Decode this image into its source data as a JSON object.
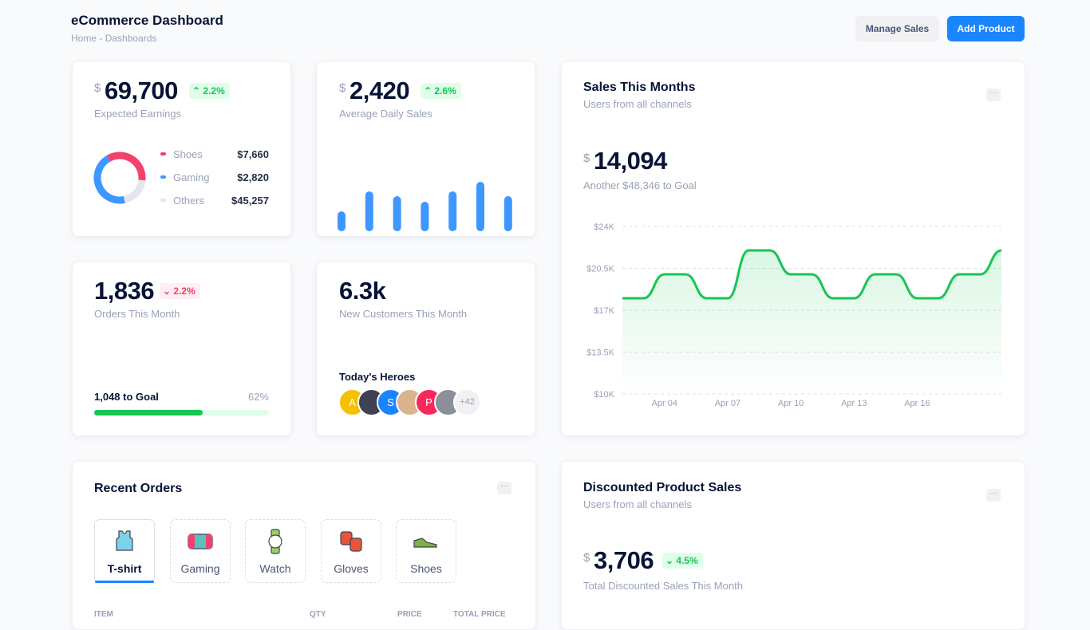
{
  "header": {
    "title": "eCommerce Dashboard",
    "breadcrumb": [
      "Home",
      "Dashboards"
    ],
    "buttons": [
      "Manage Sales",
      "Add Product"
    ]
  },
  "earnings": {
    "currency": "$",
    "value": "69,700",
    "change": "2.2%",
    "label": "Expected Earnings",
    "legend": [
      {
        "name": "Shoes",
        "amount": "$7,660",
        "color": "#f1416c"
      },
      {
        "name": "Gaming",
        "amount": "$2,820",
        "color": "#3e97ff"
      },
      {
        "name": "Others",
        "amount": "$45,257",
        "color": "#e4e6ef"
      }
    ],
    "chart_data": {
      "type": "pie",
      "values": [
        35,
        45,
        20
      ]
    }
  },
  "daily_sales": {
    "currency": "$",
    "value": "2,420",
    "change": "2.6%",
    "label": "Average Daily Sales",
    "chart_data": {
      "type": "bar",
      "values": [
        25,
        50,
        44,
        37,
        50,
        62,
        44
      ],
      "color": "#3e97ff"
    }
  },
  "orders": {
    "value": "1,836",
    "change": "2.2%",
    "label": "Orders This Month",
    "goal": "1,048 to Goal",
    "progress": {
      "value": 62,
      "label": "62%"
    },
    "color": "#17c653"
  },
  "customers": {
    "value": "6.3k",
    "label": "New Customers This Month",
    "heroes_title": "Today's Heroes",
    "avatars": [
      "A",
      "S",
      "P"
    ],
    "more": "+42"
  },
  "sales_month": {
    "title": "Sales This Months",
    "subtitle": "Users from all channels",
    "currency": "$",
    "value": "14,094",
    "note": "Another $48,346 to Goal",
    "chart_data": {
      "type": "line",
      "categories": [
        null,
        null,
        "Apr 04",
        null,
        null,
        "Apr 07",
        null,
        null,
        "Apr 10",
        null,
        null,
        "Apr 13",
        null,
        null,
        "Apr 16",
        null,
        null,
        null,
        null
      ],
      "series": [
        {
          "name": "Sales",
          "color": "#17c653",
          "values": [
            18000,
            18000,
            20000,
            20000,
            18000,
            18000,
            22000,
            22000,
            20000,
            20000,
            18000,
            18000,
            20000,
            20000,
            18000,
            18000,
            20000,
            20000,
            22000
          ]
        }
      ],
      "ylim": [
        10000,
        24000
      ],
      "yticks": [
        {
          "value": 10000,
          "label": "$10K"
        },
        {
          "value": 13500,
          "label": "$13.5K"
        },
        {
          "value": 17000,
          "label": "$17K"
        },
        {
          "value": 20500,
          "label": "$20.5K"
        },
        {
          "value": 24000,
          "label": "$24K"
        }
      ],
      "grid": true
    }
  },
  "recent_orders": {
    "title": "Recent Orders",
    "tabs": [
      "T-shirt",
      "Gaming",
      "Watch",
      "Gloves",
      "Shoes"
    ],
    "columns": [
      "ITEM",
      "QTY",
      "PRICE",
      "TOTAL PRICE"
    ]
  },
  "discounted": {
    "title": "Discounted Product Sales",
    "subtitle": "Users from all channels",
    "currency": "$",
    "value": "3,706",
    "change": "4.5%",
    "label": "Total Discounted Sales This Month"
  }
}
